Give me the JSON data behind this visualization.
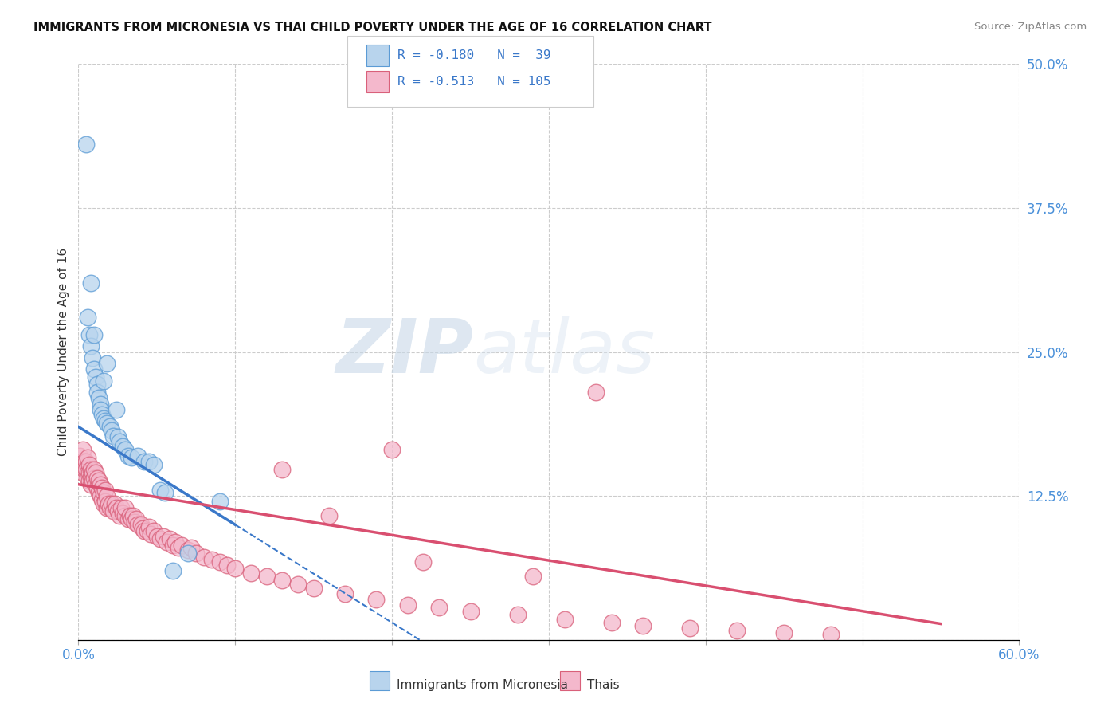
{
  "title": "IMMIGRANTS FROM MICRONESIA VS THAI CHILD POVERTY UNDER THE AGE OF 16 CORRELATION CHART",
  "source": "Source: ZipAtlas.com",
  "ylabel": "Child Poverty Under the Age of 16",
  "xlim": [
    0.0,
    0.6
  ],
  "ylim": [
    0.0,
    0.5
  ],
  "xtick_positions": [
    0.0,
    0.1,
    0.2,
    0.3,
    0.4,
    0.5,
    0.6
  ],
  "xticklabels": [
    "0.0%",
    "",
    "",
    "",
    "",
    "",
    "60.0%"
  ],
  "yticks_right": [
    0.0,
    0.125,
    0.25,
    0.375,
    0.5
  ],
  "ytick_right_labels": [
    "",
    "12.5%",
    "25.0%",
    "37.5%",
    "50.0%"
  ],
  "legend1_label": "Immigrants from Micronesia",
  "legend2_label": "Thais",
  "R1": -0.18,
  "N1": 39,
  "R2": -0.513,
  "N2": 105,
  "color_micronesia_fill": "#b8d4ed",
  "color_micronesia_edge": "#5b9bd5",
  "color_thais_fill": "#f4b8cc",
  "color_thais_edge": "#d9607a",
  "color_line_micronesia": "#3a78c9",
  "color_line_thais": "#d94f70",
  "watermark_zip": "ZIP",
  "watermark_atlas": "atlas",
  "background_color": "#ffffff",
  "grid_color": "#cccccc",
  "micronesia_x": [
    0.005,
    0.006,
    0.007,
    0.008,
    0.008,
    0.009,
    0.01,
    0.01,
    0.011,
    0.012,
    0.012,
    0.013,
    0.014,
    0.014,
    0.015,
    0.016,
    0.016,
    0.017,
    0.018,
    0.018,
    0.02,
    0.021,
    0.022,
    0.024,
    0.025,
    0.026,
    0.028,
    0.03,
    0.032,
    0.034,
    0.038,
    0.042,
    0.045,
    0.048,
    0.052,
    0.055,
    0.06,
    0.07,
    0.09
  ],
  "micronesia_y": [
    0.43,
    0.28,
    0.265,
    0.255,
    0.31,
    0.245,
    0.235,
    0.265,
    0.228,
    0.222,
    0.215,
    0.21,
    0.205,
    0.2,
    0.196,
    0.225,
    0.192,
    0.19,
    0.188,
    0.24,
    0.185,
    0.182,
    0.177,
    0.2,
    0.176,
    0.172,
    0.168,
    0.165,
    0.16,
    0.158,
    0.16,
    0.155,
    0.155,
    0.152,
    0.13,
    0.128,
    0.06,
    0.075,
    0.12
  ],
  "thais_x": [
    0.001,
    0.002,
    0.002,
    0.003,
    0.003,
    0.004,
    0.004,
    0.005,
    0.005,
    0.006,
    0.006,
    0.006,
    0.007,
    0.007,
    0.007,
    0.008,
    0.008,
    0.008,
    0.009,
    0.009,
    0.01,
    0.01,
    0.011,
    0.011,
    0.012,
    0.012,
    0.013,
    0.013,
    0.014,
    0.014,
    0.015,
    0.015,
    0.016,
    0.016,
    0.017,
    0.017,
    0.018,
    0.018,
    0.019,
    0.02,
    0.021,
    0.022,
    0.023,
    0.024,
    0.025,
    0.026,
    0.027,
    0.028,
    0.03,
    0.03,
    0.032,
    0.033,
    0.034,
    0.035,
    0.036,
    0.037,
    0.038,
    0.04,
    0.041,
    0.042,
    0.044,
    0.045,
    0.046,
    0.048,
    0.05,
    0.052,
    0.054,
    0.056,
    0.058,
    0.06,
    0.062,
    0.064,
    0.066,
    0.07,
    0.072,
    0.075,
    0.08,
    0.085,
    0.09,
    0.095,
    0.1,
    0.11,
    0.12,
    0.13,
    0.14,
    0.15,
    0.17,
    0.19,
    0.21,
    0.23,
    0.25,
    0.28,
    0.31,
    0.34,
    0.36,
    0.39,
    0.42,
    0.45,
    0.48,
    0.33,
    0.2,
    0.16,
    0.13,
    0.22,
    0.29
  ],
  "thais_y": [
    0.16,
    0.155,
    0.15,
    0.165,
    0.145,
    0.155,
    0.148,
    0.155,
    0.148,
    0.158,
    0.145,
    0.14,
    0.152,
    0.145,
    0.138,
    0.148,
    0.142,
    0.135,
    0.145,
    0.138,
    0.148,
    0.14,
    0.145,
    0.135,
    0.14,
    0.132,
    0.138,
    0.128,
    0.135,
    0.125,
    0.132,
    0.122,
    0.128,
    0.118,
    0.13,
    0.12,
    0.125,
    0.115,
    0.118,
    0.115,
    0.118,
    0.112,
    0.118,
    0.115,
    0.112,
    0.108,
    0.115,
    0.11,
    0.108,
    0.115,
    0.105,
    0.108,
    0.105,
    0.108,
    0.102,
    0.105,
    0.1,
    0.1,
    0.097,
    0.095,
    0.095,
    0.098,
    0.092,
    0.095,
    0.09,
    0.088,
    0.09,
    0.085,
    0.088,
    0.082,
    0.085,
    0.08,
    0.082,
    0.078,
    0.08,
    0.075,
    0.072,
    0.07,
    0.068,
    0.065,
    0.062,
    0.058,
    0.055,
    0.052,
    0.048,
    0.045,
    0.04,
    0.035,
    0.03,
    0.028,
    0.025,
    0.022,
    0.018,
    0.015,
    0.012,
    0.01,
    0.008,
    0.006,
    0.005,
    0.215,
    0.165,
    0.108,
    0.148,
    0.068,
    0.055
  ]
}
